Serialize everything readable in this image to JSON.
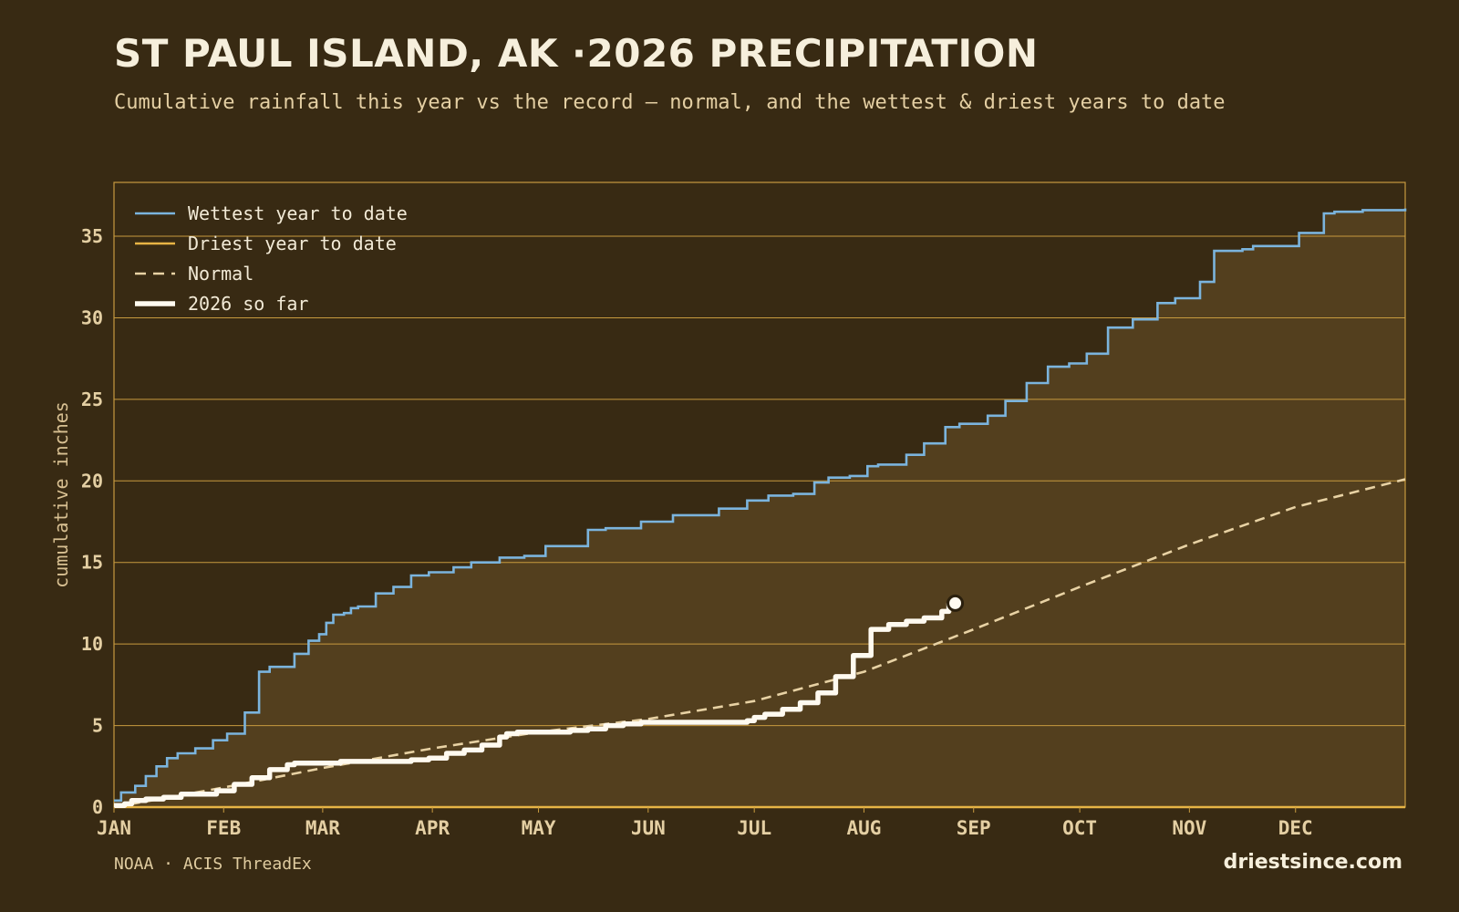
{
  "header": {
    "title": "ST PAUL ISLAND, AK ·2026 PRECIPITATION",
    "subtitle": "Cumulative rainfall this year vs the record — normal, and the wettest & driest years to date"
  },
  "footer": {
    "source": "NOAA · ACIS ThreadEx",
    "brand": "driestsince.com"
  },
  "colors": {
    "background": "#382a13",
    "band_fill": "#533f1e",
    "gridline": "#c79a3f",
    "wettest": "#7bb4dd",
    "driest": "#e7b445",
    "normal": "#e8d2a4",
    "current": "#fffaf0"
  },
  "chart_data": {
    "type": "line",
    "xlabel": "",
    "ylabel": "cumulative inches",
    "ylim": [
      0,
      38.3
    ],
    "yticks": [
      0,
      5,
      10,
      15,
      20,
      25,
      30,
      35
    ],
    "xlim_day_of_year": [
      1,
      366
    ],
    "month_ticks": [
      {
        "label": "JAN",
        "day": 1
      },
      {
        "label": "FEB",
        "day": 32
      },
      {
        "label": "MAR",
        "day": 60
      },
      {
        "label": "APR",
        "day": 91
      },
      {
        "label": "MAY",
        "day": 121
      },
      {
        "label": "JUN",
        "day": 152
      },
      {
        "label": "JUL",
        "day": 182
      },
      {
        "label": "AUG",
        "day": 213
      },
      {
        "label": "SEP",
        "day": 244
      },
      {
        "label": "OCT",
        "day": 274
      },
      {
        "label": "NOV",
        "day": 305
      },
      {
        "label": "DEC",
        "day": 335
      }
    ],
    "grid": true,
    "legend_position": "top-left",
    "series": [
      {
        "name": "Wettest year to date",
        "key": "wettest",
        "style": "solid",
        "x": [
          1,
          3,
          7,
          10,
          13,
          16,
          19,
          24,
          29,
          33,
          38,
          42,
          45,
          52,
          56,
          59,
          61,
          63,
          66,
          68,
          70,
          75,
          80,
          85,
          90,
          97,
          102,
          110,
          117,
          123,
          135,
          140,
          145,
          150,
          159,
          172,
          180,
          186,
          193,
          199,
          203,
          209,
          214,
          217,
          225,
          230,
          236,
          240,
          248,
          253,
          259,
          265,
          271,
          276,
          282,
          289,
          296,
          301,
          308,
          312,
          320,
          323,
          336,
          343,
          346,
          349,
          354,
          366
        ],
        "y": [
          0.4,
          0.9,
          1.3,
          1.9,
          2.5,
          3.0,
          3.3,
          3.6,
          4.1,
          4.5,
          5.8,
          8.3,
          8.6,
          9.4,
          10.2,
          10.6,
          11.3,
          11.8,
          11.9,
          12.2,
          12.3,
          13.1,
          13.5,
          14.2,
          14.4,
          14.7,
          15.0,
          15.3,
          15.4,
          16.0,
          17.0,
          17.1,
          17.1,
          17.5,
          17.9,
          18.3,
          18.8,
          19.1,
          19.2,
          19.9,
          20.2,
          20.3,
          20.9,
          21.0,
          21.6,
          22.3,
          23.3,
          23.5,
          24.0,
          24.9,
          26.0,
          27.0,
          27.2,
          27.8,
          29.4,
          29.9,
          30.9,
          31.2,
          32.2,
          34.1,
          34.2,
          34.4,
          35.2,
          36.4,
          36.5,
          36.5,
          36.6,
          36.7
        ]
      },
      {
        "name": "Driest year to date",
        "key": "driest",
        "style": "solid",
        "x": [
          1,
          366
        ],
        "y": [
          0,
          0
        ]
      },
      {
        "name": "Normal",
        "key": "normal",
        "style": "dashed",
        "x": [
          1,
          32,
          60,
          91,
          121,
          152,
          182,
          213,
          244,
          274,
          305,
          335,
          366
        ],
        "y": [
          0.0,
          1.2,
          2.4,
          3.6,
          4.6,
          5.4,
          6.5,
          8.3,
          10.9,
          13.5,
          16.1,
          18.4,
          20.1
        ]
      },
      {
        "name": "2026 so far",
        "key": "current",
        "style": "bold",
        "x": [
          1,
          4,
          6,
          10,
          15,
          20,
          30,
          35,
          40,
          45,
          50,
          52,
          55,
          60,
          65,
          70,
          75,
          80,
          85,
          90,
          95,
          100,
          105,
          110,
          112,
          115,
          120,
          125,
          130,
          135,
          140,
          145,
          150,
          155,
          160,
          165,
          170,
          175,
          180,
          182,
          185,
          190,
          195,
          200,
          205,
          210,
          215,
          220,
          225,
          230,
          235,
          237
        ],
        "y": [
          0.1,
          0.2,
          0.4,
          0.5,
          0.6,
          0.8,
          1.0,
          1.4,
          1.8,
          2.3,
          2.6,
          2.7,
          2.7,
          2.7,
          2.8,
          2.8,
          2.8,
          2.8,
          2.9,
          3.0,
          3.3,
          3.5,
          3.8,
          4.3,
          4.5,
          4.6,
          4.6,
          4.6,
          4.7,
          4.8,
          5.0,
          5.1,
          5.2,
          5.2,
          5.2,
          5.2,
          5.2,
          5.2,
          5.3,
          5.5,
          5.7,
          6.0,
          6.4,
          7.0,
          8.0,
          9.3,
          10.9,
          11.2,
          11.4,
          11.6,
          12.0,
          12.5
        ]
      }
    ],
    "current_marker": {
      "day": 237,
      "value": 12.5
    }
  }
}
